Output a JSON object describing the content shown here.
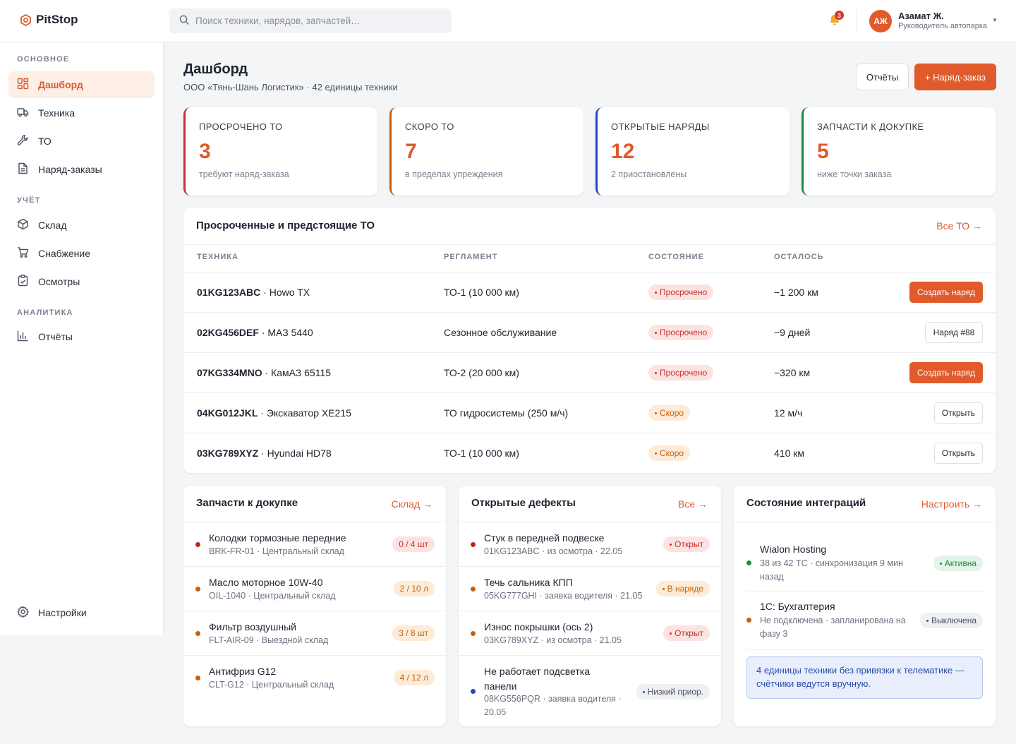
{
  "app": {
    "name": "PitStop"
  },
  "search": {
    "placeholder": "Поиск техники, нарядов, запчастей…"
  },
  "notifications": {
    "count": "3"
  },
  "user": {
    "initials": "АЖ",
    "name": "Азамат Ж.",
    "role": "Руководитель автопарка"
  },
  "sidebar": {
    "sections": [
      "ОСНОВНОЕ",
      "УЧЁТ",
      "АНАЛИТИКА"
    ],
    "items": [
      {
        "label": "Дашборд",
        "icon": "grid-icon",
        "active": true
      },
      {
        "label": "Техника",
        "icon": "truck-icon"
      },
      {
        "label": "ТО",
        "icon": "wrench-icon"
      },
      {
        "label": "Наряд-заказы",
        "icon": "document-icon"
      },
      {
        "label": "Склад",
        "icon": "box-icon"
      },
      {
        "label": "Снабжение",
        "icon": "cart-icon"
      },
      {
        "label": "Осмотры",
        "icon": "clipboard-icon"
      },
      {
        "label": "Отчёты",
        "icon": "bar-chart-icon"
      }
    ],
    "settings": {
      "label": "Настройки",
      "icon": "gear-icon"
    }
  },
  "page": {
    "title": "Дашборд",
    "subtitle": "ООО «Тянь-Шань Логистик» · 42 единицы техники",
    "reports_button": "Отчёты",
    "new_order_button": "+ Наряд-заказ"
  },
  "kpis": [
    {
      "label": "ПРОСРОЧЕНО ТО",
      "value": "3",
      "note": "требуют наряд-заказа",
      "color": "#c8322a"
    },
    {
      "label": "СКОРО ТО",
      "value": "7",
      "note": "в пределах упреждения",
      "color": "#c2620f"
    },
    {
      "label": "ОТКРЫТЫЕ НАРЯДЫ",
      "value": "12",
      "note": "2 приостановлены",
      "color": "#2747b8"
    },
    {
      "label": "ЗАПЧАСТИ К ДОКУПКЕ",
      "value": "5",
      "note": "ниже точки заказа",
      "color": "#1e8a45"
    }
  ],
  "maintenance": {
    "title": "Просроченные и предстоящие ТО",
    "link": "Все ТО →",
    "columns": [
      "ТЕХНИКА",
      "РЕГЛАМЕНТ",
      "СОСТОЯНИЕ",
      "ОСТАЛОСЬ"
    ],
    "rows": [
      {
        "plate": "01KG123ABC",
        "model": " · Howo TX",
        "schedule": "ТО-1 (10 000 км)",
        "status": "Просрочено",
        "status_kind": "red",
        "left": "−1 200 км",
        "action": "Создать наряд",
        "action_kind": "pri"
      },
      {
        "plate": "02KG456DEF",
        "model": " · МАЗ 5440",
        "schedule": "Сезонное обслуживание",
        "status": "Просрочено",
        "status_kind": "red",
        "left": "−9 дней",
        "action": "Наряд #88",
        "action_kind": "out"
      },
      {
        "plate": "07KG334MNO",
        "model": " · КамАЗ 65115",
        "schedule": "ТО-2 (20 000 км)",
        "status": "Просрочено",
        "status_kind": "red",
        "left": "−320 км",
        "action": "Создать наряд",
        "action_kind": "pri"
      },
      {
        "plate": "04KG012JKL",
        "model": " · Экскаватор XE215",
        "schedule": "ТО гидросистемы (250 м/ч)",
        "status": "Скоро",
        "status_kind": "amber",
        "left": "12 м/ч",
        "action": "Открыть",
        "action_kind": "out"
      },
      {
        "plate": "03KG789XYZ",
        "model": " · Hyundai HD78",
        "schedule": "ТО-1 (10 000 км)",
        "status": "Скоро",
        "status_kind": "amber",
        "left": "410 км",
        "action": "Открыть",
        "action_kind": "out"
      }
    ]
  },
  "parts": {
    "title": "Запчасти к докупке",
    "link": "Склад →",
    "items": [
      {
        "name": "Колодки тормозные передние",
        "meta": "BRK-FR-01 · Центральный склад",
        "qty": "0 / 4 шт",
        "kind": "red",
        "dot": "#b32a22"
      },
      {
        "name": "Масло моторное 10W-40",
        "meta": "OIL-1040 · Центральный склад",
        "qty": "2 / 10 л",
        "kind": "amber",
        "dot": "#c2620f"
      },
      {
        "name": "Фильтр воздушный",
        "meta": "FLT-AIR-09 · Выездной склад",
        "qty": "3 / 8 шт",
        "kind": "amber",
        "dot": "#c2620f"
      },
      {
        "name": "Антифриз G12",
        "meta": "CLT-G12 · Центральный склад",
        "qty": "4 / 12 л",
        "kind": "amber",
        "dot": "#c2620f"
      }
    ]
  },
  "defects": {
    "title": "Открытые дефекты",
    "link": "Все →",
    "items": [
      {
        "name": "Стук в передней подвеске",
        "meta": "01KG123ABC · из осмотра · 22.05",
        "status": "Открыт",
        "kind": "red",
        "dot": "#b32a22"
      },
      {
        "name": "Течь сальника КПП",
        "meta": "05KG777GHI · заявка водителя · 21.05",
        "status": "В наряде",
        "kind": "amber",
        "dot": "#c2620f"
      },
      {
        "name": "Износ покрышки (ось 2)",
        "meta": "03KG789XYZ · из осмотра · 21.05",
        "status": "Открыт",
        "kind": "red",
        "dot": "#c2620f"
      },
      {
        "name": "Не работает подсветка панели",
        "meta": "08KG556PQR · заявка водителя · 20.05",
        "status": "Низкий приор.",
        "kind": "gray",
        "dot": "#2747b8"
      }
    ]
  },
  "integrations": {
    "title": "Состояние интеграций",
    "link": "Настроить →",
    "items": [
      {
        "name": "Wialon Hosting",
        "meta": "38 из 42 ТС · синхронизация 9 мин назад",
        "status": "Активна",
        "kind": "green",
        "dot": "#1e8a45"
      },
      {
        "name": "1С: Бухгалтерия",
        "meta": "Не подключена · запланирована на фазу 3",
        "status": "Выключена",
        "kind": "gray",
        "dot": "#c2620f"
      }
    ],
    "note": "4 единицы техники без привязки к телематике — счётчики ведутся вручную."
  }
}
